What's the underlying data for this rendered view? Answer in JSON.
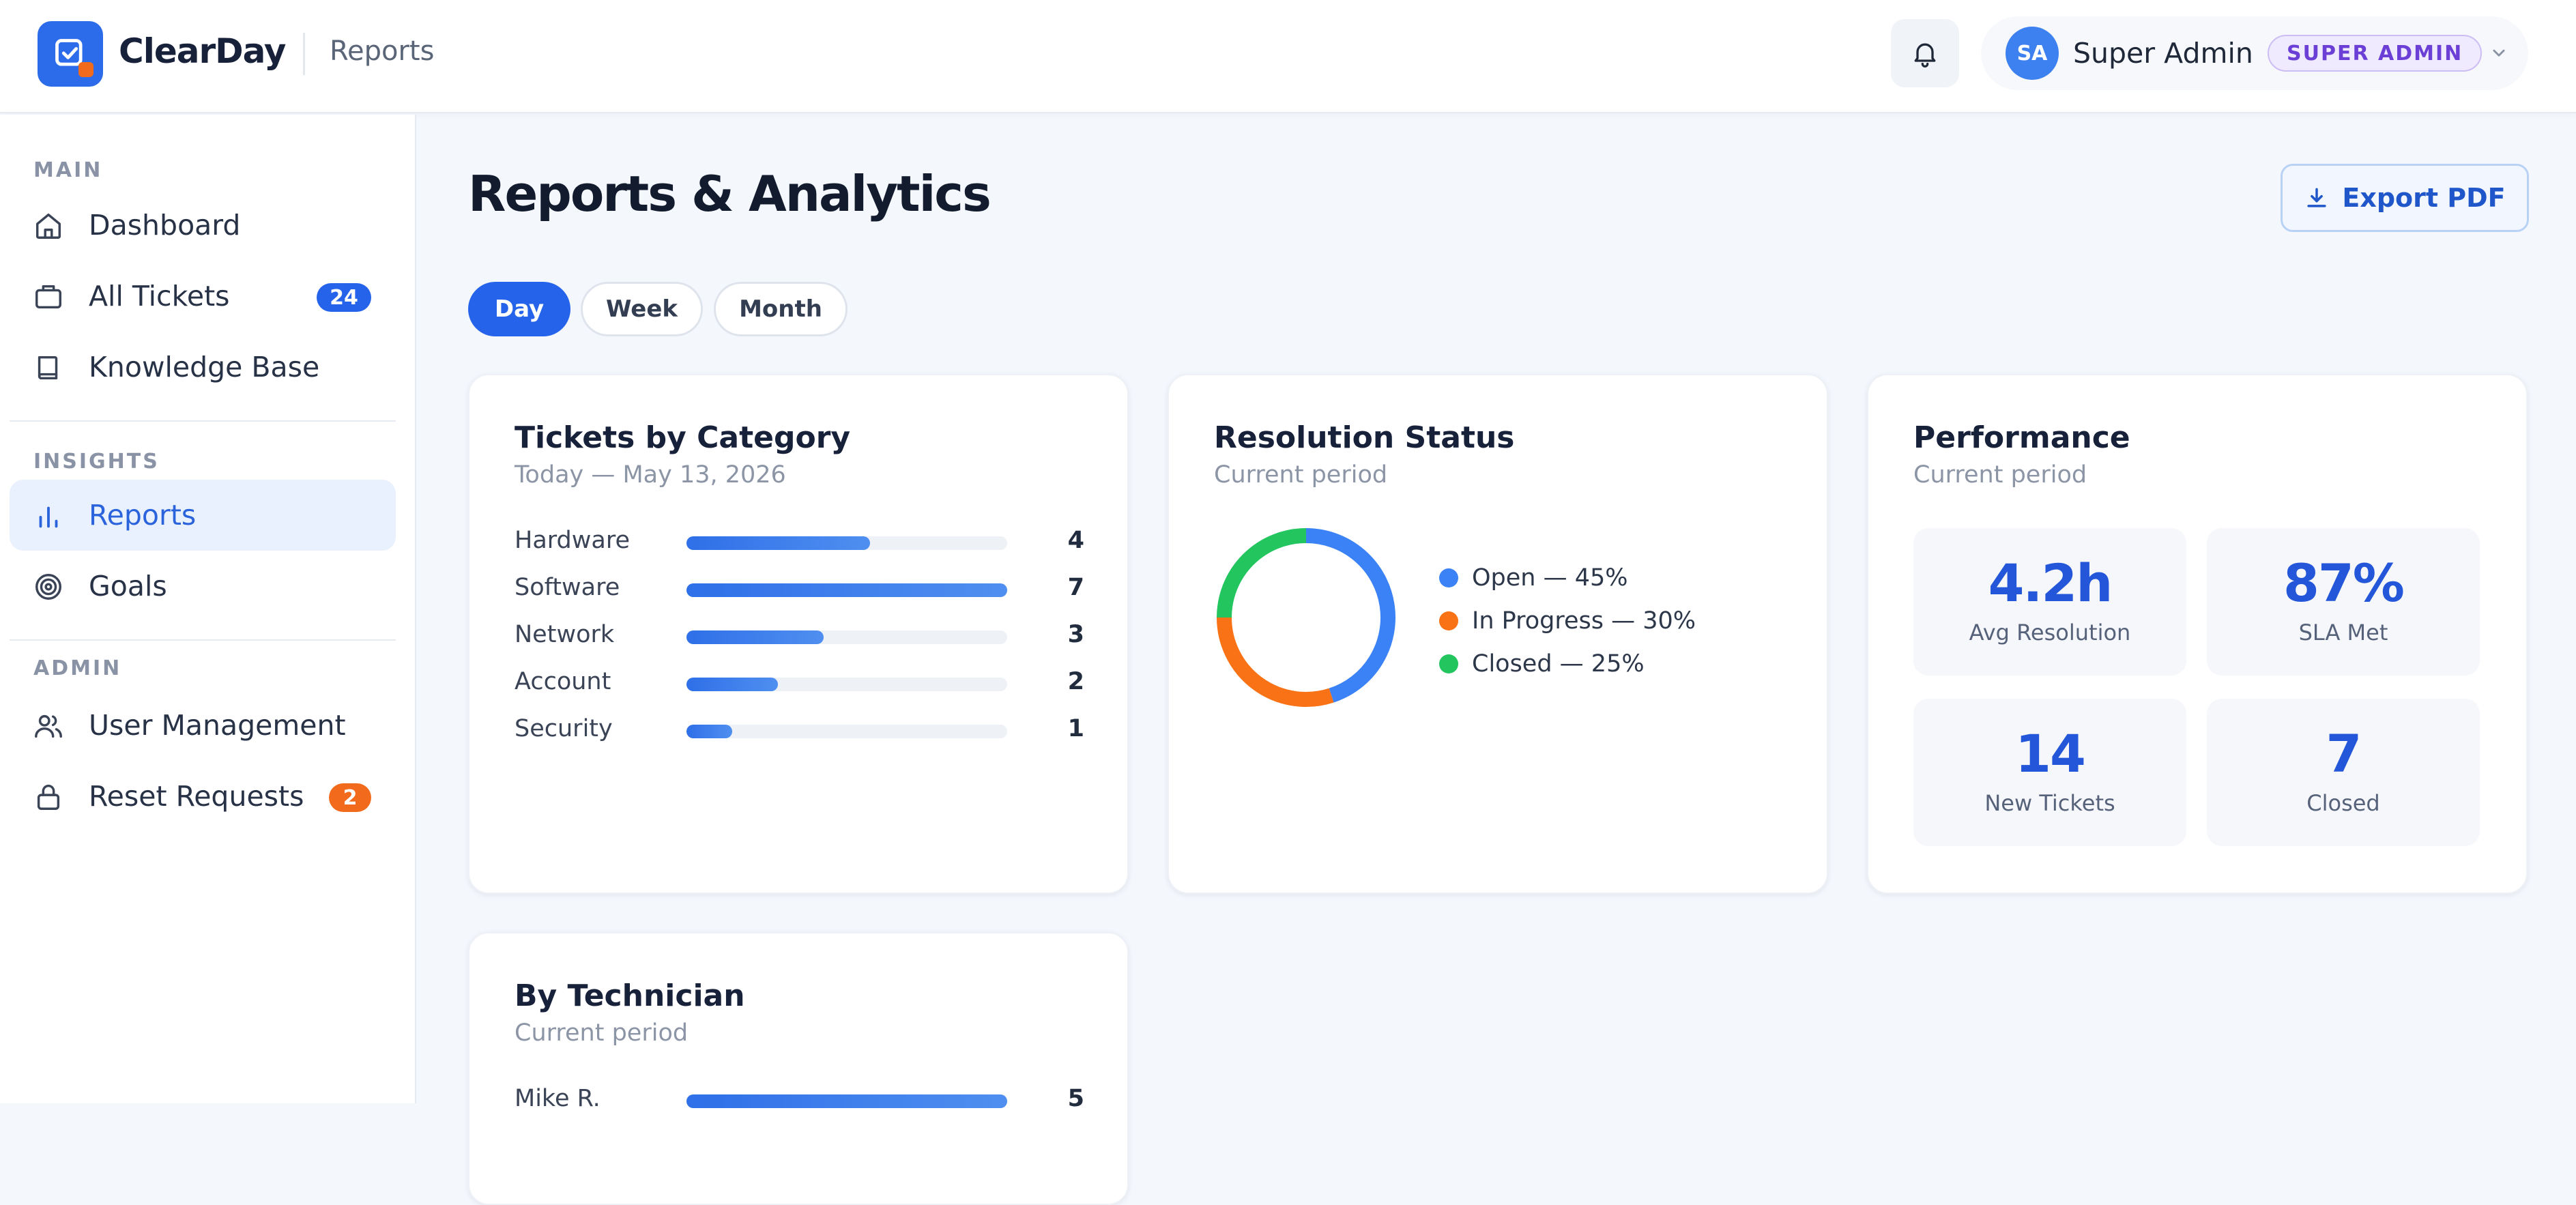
{
  "app": {
    "brand": "ClearDay",
    "breadcrumb": "Reports"
  },
  "user": {
    "initials": "SA",
    "name": "Super Admin",
    "role_badge": "SUPER ADMIN"
  },
  "sidebar": {
    "sections": [
      {
        "label": "MAIN"
      },
      {
        "label": "INSIGHTS"
      },
      {
        "label": "ADMIN"
      }
    ],
    "items": [
      {
        "label": "Dashboard",
        "icon": "home-icon"
      },
      {
        "label": "All Tickets",
        "icon": "ticket-icon",
        "badge": "24"
      },
      {
        "label": "Knowledge Base",
        "icon": "book-icon"
      },
      {
        "label": "Reports",
        "icon": "bar-chart-icon",
        "active": true
      },
      {
        "label": "Goals",
        "icon": "target-icon"
      },
      {
        "label": "User Management",
        "icon": "users-icon"
      },
      {
        "label": "Reset Requests",
        "icon": "lock-icon",
        "badge": "2"
      }
    ]
  },
  "main": {
    "title": "Reports & Analytics",
    "export_label": "Export PDF",
    "periods": [
      "Day",
      "Week",
      "Month"
    ],
    "active_period": "Day"
  },
  "cards": {
    "category": {
      "title": "Tickets by Category",
      "subtitle": "Today — May 13, 2026"
    },
    "resolution": {
      "title": "Resolution Status",
      "subtitle": "Current period"
    },
    "performance": {
      "title": "Performance",
      "subtitle": "Current period",
      "kpis": [
        {
          "value": "4.2h",
          "label": "Avg Resolution"
        },
        {
          "value": "87%",
          "label": "SLA Met"
        },
        {
          "value": "14",
          "label": "New Tickets"
        },
        {
          "value": "7",
          "label": "Closed"
        }
      ]
    },
    "technician": {
      "title": "By Technician",
      "subtitle": "Current period"
    }
  },
  "colors": {
    "primary": "#2563eb",
    "orange": "#f26a1b",
    "green": "#22b856",
    "badge_blue": "#2563eb",
    "badge_orange": "#f26a1b"
  },
  "chart_data": [
    {
      "type": "bar",
      "orientation": "horizontal",
      "title": "Tickets by Category",
      "categories": [
        "Hardware",
        "Software",
        "Network",
        "Account",
        "Security"
      ],
      "values": [
        4,
        7,
        3,
        2,
        1
      ],
      "xlim": [
        0,
        7
      ]
    },
    {
      "type": "pie",
      "style": "donut",
      "title": "Resolution Status",
      "labels": [
        "Open",
        "In Progress",
        "Closed"
      ],
      "values": [
        45,
        30,
        25
      ],
      "legend_text": [
        "Open — 45%",
        "In Progress — 30%",
        "Closed — 25%"
      ],
      "colors": [
        "#3b82f6",
        "#f97316",
        "#22c55e"
      ],
      "legend": "right"
    },
    {
      "type": "bar",
      "orientation": "horizontal",
      "title": "By Technician",
      "categories": [
        "Mike R."
      ],
      "values": [
        5
      ],
      "xlim": [
        0,
        5
      ]
    }
  ]
}
